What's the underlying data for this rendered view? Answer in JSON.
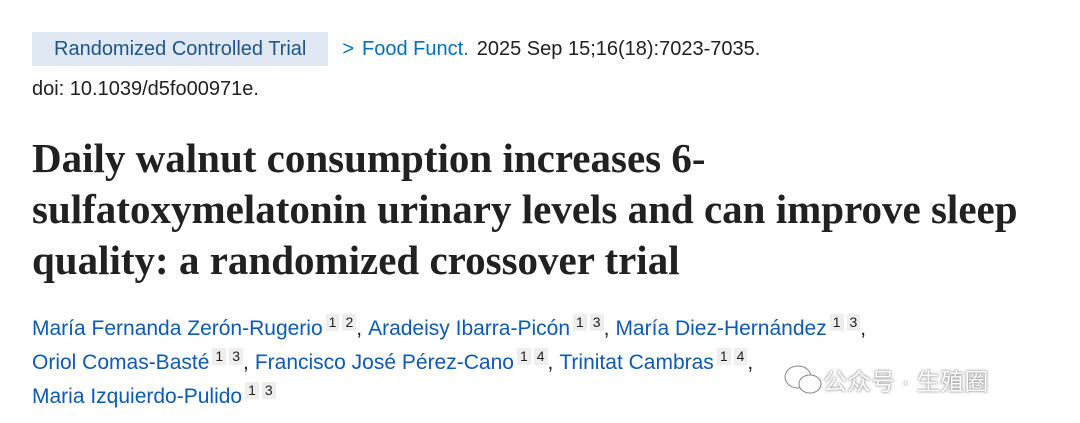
{
  "header": {
    "badge": "Randomized Controlled Trial",
    "journal": "Food Funct.",
    "citation": "2025 Sep 15;16(18):7023-7035.",
    "doi": "doi: 10.1039/d5fo00971e."
  },
  "title": "Daily walnut consumption increases 6-sulfatoxymelatonin urinary levels and can improve sleep quality: a randomized crossover trial",
  "separator": ",",
  "authors": [
    {
      "name": "María Fernanda Zerón-Rugerio",
      "affiliations": [
        "1",
        "2"
      ]
    },
    {
      "name": "Aradeisy Ibarra-Picón",
      "affiliations": [
        "1",
        "3"
      ]
    },
    {
      "name": "María Diez-Hernández",
      "affiliations": [
        "1",
        "3"
      ]
    },
    {
      "name": "Oriol Comas-Basté",
      "affiliations": [
        "1",
        "3"
      ]
    },
    {
      "name": "Francisco José Pérez-Cano",
      "affiliations": [
        "1",
        "4"
      ]
    },
    {
      "name": "Trinitat Cambras",
      "affiliations": [
        "1",
        "4"
      ]
    },
    {
      "name": "Maria Izquierdo-Pulido",
      "affiliations": [
        "1",
        "3"
      ]
    }
  ],
  "watermark": "公众号 · 生殖圈"
}
